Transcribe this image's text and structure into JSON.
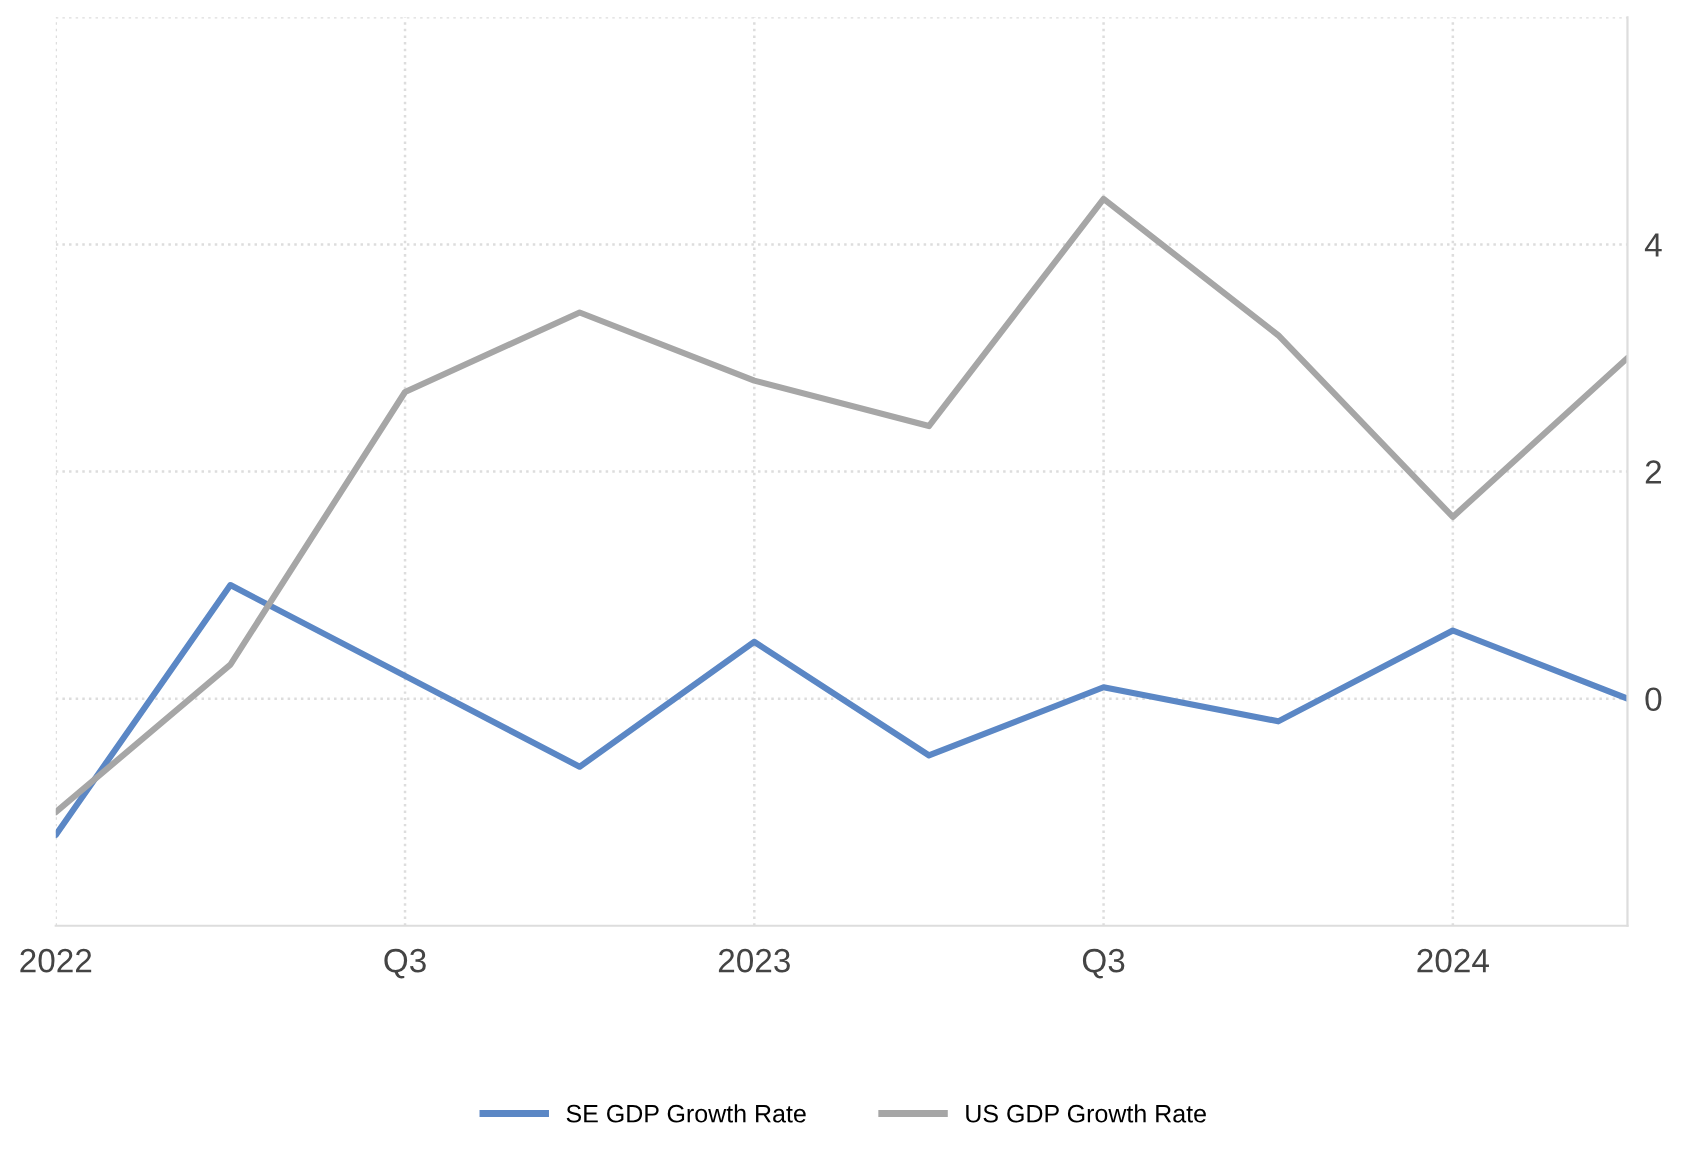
{
  "chart_data": {
    "type": "line",
    "categories": [
      "2022",
      null,
      "Q3",
      null,
      "2023",
      null,
      "Q3",
      null,
      "2024",
      null
    ],
    "series": [
      {
        "name": "SE GDP Growth Rate",
        "color": "#5b87c5",
        "values": [
          -1.2,
          1.0,
          0.2,
          -0.6,
          0.5,
          -0.5,
          0.1,
          -0.2,
          0.6,
          0.0
        ]
      },
      {
        "name": "US GDP Growth Rate",
        "color": "#a6a6a6",
        "values": [
          -1.0,
          0.3,
          2.7,
          3.4,
          2.8,
          2.4,
          4.4,
          3.2,
          1.6,
          3.0
        ]
      }
    ],
    "ylim": [
      -2,
      6
    ],
    "yticks": [
      0,
      2,
      4,
      {
        "value": 6,
        "label": null
      }
    ],
    "grid": true,
    "legend": "bottom",
    "marker": "none",
    "line_style": "solid"
  }
}
